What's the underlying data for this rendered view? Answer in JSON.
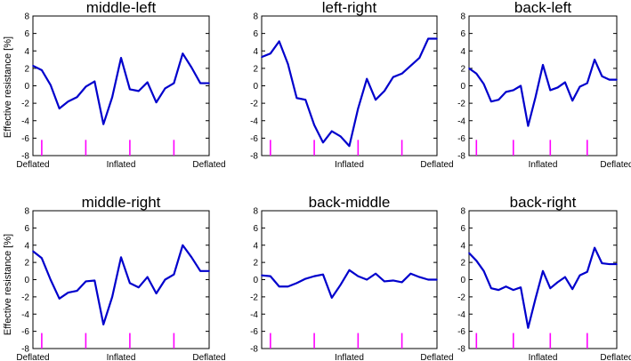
{
  "figure": {
    "ylabel": "Effective resistance [%]"
  },
  "chart_data": [
    {
      "type": "line",
      "title": "middle-left",
      "ylabel": "Effective resistance [%]",
      "ylim": [
        -8,
        8
      ],
      "yticks": [
        8,
        6,
        4,
        2,
        0,
        -2,
        -4,
        -6,
        -8
      ],
      "xlim": [
        0,
        20
      ],
      "x_category_labels": [
        {
          "x": 0,
          "label": "Deflated"
        },
        {
          "x": 10,
          "label": "Inflated"
        },
        {
          "x": 20,
          "label": "Deflated"
        }
      ],
      "markers_x": [
        1,
        6,
        11,
        16
      ],
      "marker_color": "#ff00ff",
      "line_color": "#0000cc",
      "series": [
        {
          "x": [
            0,
            1,
            2,
            3,
            4,
            5,
            6,
            7,
            8,
            9,
            10,
            11,
            12,
            13,
            14,
            15,
            16,
            17,
            18,
            19,
            20
          ],
          "values": [
            2.3,
            1.8,
            0.1,
            -2.6,
            -1.8,
            -1.3,
            -0.1,
            0.5,
            -4.4,
            -1.3,
            3.2,
            -0.4,
            -0.6,
            0.4,
            -1.9,
            -0.3,
            0.3,
            3.7,
            2.1,
            0.3,
            0.3
          ]
        }
      ]
    },
    {
      "type": "line",
      "title": "left-right",
      "ylabel": "",
      "ylim": [
        -8,
        8
      ],
      "yticks": [
        8,
        6,
        4,
        2,
        0,
        -2,
        -4,
        -6,
        -8
      ],
      "xlim": [
        0,
        20
      ],
      "x_category_labels": [
        {
          "x": 10,
          "label": "Inflated"
        },
        {
          "x": 20,
          "label": "Deflated"
        }
      ],
      "markers_x": [
        1,
        6,
        11,
        16
      ],
      "marker_color": "#ff00ff",
      "line_color": "#0000cc",
      "series": [
        {
          "x": [
            0,
            1,
            2,
            3,
            4,
            5,
            6,
            7,
            8,
            9,
            10,
            11,
            12,
            13,
            14,
            15,
            16,
            17,
            18,
            19,
            20
          ],
          "values": [
            3.3,
            3.7,
            5.1,
            2.5,
            -1.4,
            -1.6,
            -4.5,
            -6.5,
            -5.2,
            -5.8,
            -6.9,
            -2.6,
            0.8,
            -1.6,
            -0.6,
            1.0,
            1.4,
            2.3,
            3.2,
            5.4,
            5.4
          ]
        }
      ]
    },
    {
      "type": "line",
      "title": "back-left",
      "ylabel": "",
      "ylim": [
        -8,
        8
      ],
      "yticks": [
        8,
        6,
        4,
        2,
        0,
        -2,
        -4,
        -6,
        -8
      ],
      "xlim": [
        0,
        20
      ],
      "x_category_labels": [
        {
          "x": 10,
          "label": "Inflated"
        },
        {
          "x": 20,
          "label": "Deflated"
        }
      ],
      "markers_x": [
        1,
        6,
        11,
        16
      ],
      "marker_color": "#ff00ff",
      "line_color": "#0000cc",
      "series": [
        {
          "x": [
            0,
            1,
            2,
            3,
            4,
            5,
            6,
            7,
            8,
            9,
            10,
            11,
            12,
            13,
            14,
            15,
            16,
            17,
            18,
            19,
            20
          ],
          "values": [
            2.0,
            1.4,
            0.2,
            -1.8,
            -1.6,
            -0.7,
            -0.5,
            0.0,
            -4.6,
            -1.3,
            2.4,
            -0.5,
            -0.2,
            0.4,
            -1.7,
            -0.1,
            0.3,
            3.0,
            1.1,
            0.7,
            0.7
          ]
        }
      ]
    },
    {
      "type": "line",
      "title": "middle-right",
      "ylabel": "Effective resistance [%]",
      "ylim": [
        -8,
        8
      ],
      "yticks": [
        8,
        6,
        4,
        2,
        0,
        -2,
        -4,
        -6,
        -8
      ],
      "xlim": [
        0,
        20
      ],
      "x_category_labels": [
        {
          "x": 0,
          "label": "Deflated"
        },
        {
          "x": 10,
          "label": "Inflated"
        },
        {
          "x": 20,
          "label": "Deflated"
        }
      ],
      "markers_x": [
        1,
        6,
        11,
        16
      ],
      "marker_color": "#ff00ff",
      "line_color": "#0000cc",
      "series": [
        {
          "x": [
            0,
            1,
            2,
            3,
            4,
            5,
            6,
            7,
            8,
            9,
            10,
            11,
            12,
            13,
            14,
            15,
            16,
            17,
            18,
            19,
            20
          ],
          "values": [
            3.3,
            2.5,
            0.0,
            -2.2,
            -1.5,
            -1.3,
            -0.2,
            -0.1,
            -5.2,
            -2.0,
            2.6,
            -0.4,
            -0.9,
            0.3,
            -1.6,
            0.0,
            0.6,
            4.0,
            2.6,
            1.0,
            1.0
          ]
        }
      ]
    },
    {
      "type": "line",
      "title": "back-middle",
      "ylabel": "",
      "ylim": [
        -8,
        8
      ],
      "yticks": [
        8,
        6,
        4,
        2,
        0,
        -2,
        -4,
        -6,
        -8
      ],
      "xlim": [
        0,
        20
      ],
      "x_category_labels": [
        {
          "x": 10,
          "label": "Inflated"
        },
        {
          "x": 20,
          "label": "Deflated"
        }
      ],
      "markers_x": [
        1,
        6,
        11,
        16
      ],
      "marker_color": "#ff00ff",
      "line_color": "#0000cc",
      "series": [
        {
          "x": [
            0,
            1,
            2,
            3,
            4,
            5,
            6,
            7,
            8,
            9,
            10,
            11,
            12,
            13,
            14,
            15,
            16,
            17,
            18,
            19,
            20
          ],
          "values": [
            0.5,
            0.4,
            -0.8,
            -0.8,
            -0.4,
            0.1,
            0.4,
            0.6,
            -2.1,
            -0.6,
            1.1,
            0.4,
            0.0,
            0.7,
            -0.2,
            -0.1,
            -0.3,
            0.7,
            0.3,
            0.0,
            0.0
          ]
        }
      ]
    },
    {
      "type": "line",
      "title": "back-right",
      "ylabel": "",
      "ylim": [
        -8,
        8
      ],
      "yticks": [
        8,
        6,
        4,
        2,
        0,
        -2,
        -4,
        -6,
        -8
      ],
      "xlim": [
        0,
        20
      ],
      "x_category_labels": [
        {
          "x": 10,
          "label": "Inflated"
        },
        {
          "x": 20,
          "label": "Deflated"
        }
      ],
      "markers_x": [
        1,
        6,
        11,
        16
      ],
      "marker_color": "#ff00ff",
      "line_color": "#0000cc",
      "series": [
        {
          "x": [
            0,
            1,
            2,
            3,
            4,
            5,
            6,
            7,
            8,
            9,
            10,
            11,
            12,
            13,
            14,
            15,
            16,
            17,
            18,
            19,
            20
          ],
          "values": [
            3.1,
            2.2,
            1.0,
            -1.0,
            -1.2,
            -0.8,
            -1.2,
            -0.9,
            -5.6,
            -2.2,
            1.0,
            -1.0,
            -0.3,
            0.3,
            -1.1,
            0.5,
            0.9,
            3.7,
            1.9,
            1.8,
            1.8
          ]
        }
      ]
    }
  ]
}
